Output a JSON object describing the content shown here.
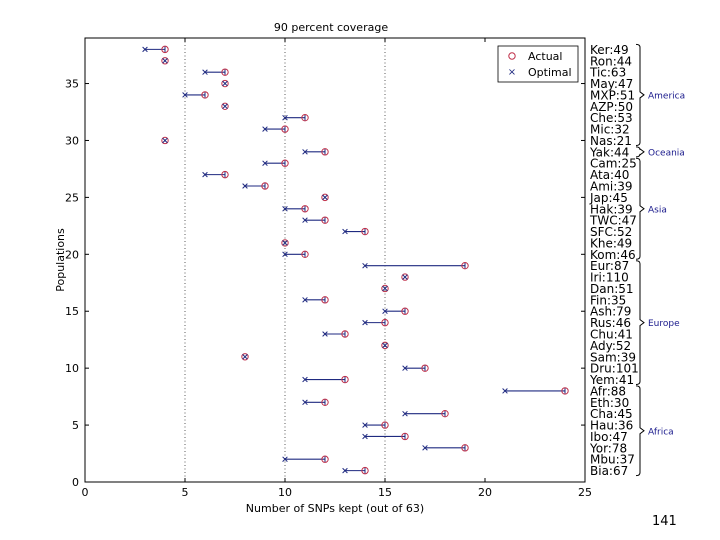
{
  "page_number": "141",
  "colors": {
    "actual": "#c0304a",
    "optimal": "#1f2a80",
    "grid": "#333333"
  },
  "legend": {
    "actual": "Actual",
    "optimal": "Optimal"
  },
  "chart_data": {
    "type": "scatter",
    "title": "90 percent coverage",
    "xlabel": "Number of SNPs kept (out of 63)",
    "ylabel": "Populations",
    "xlim": [
      0,
      25
    ],
    "ylim": [
      0,
      39
    ],
    "xticks": [
      0,
      5,
      10,
      15,
      20,
      25
    ],
    "yticks": [
      0,
      5,
      10,
      15,
      20,
      25,
      30,
      35
    ],
    "grid": "x-dotted at 5, 10, 15",
    "legend_position": "top-right",
    "populations": [
      {
        "y": 38,
        "label": "Ker:49",
        "actual": 4,
        "optimal": 3
      },
      {
        "y": 37,
        "label": "Ron:44",
        "actual": 4,
        "optimal": 4
      },
      {
        "y": 36,
        "label": "Tic:63",
        "actual": 7,
        "optimal": 6
      },
      {
        "y": 35,
        "label": "May:47",
        "actual": 7,
        "optimal": 7
      },
      {
        "y": 34,
        "label": "MXP:51",
        "actual": 6,
        "optimal": 5
      },
      {
        "y": 33,
        "label": "AZP:50",
        "actual": 7,
        "optimal": 7
      },
      {
        "y": 32,
        "label": "Che:53",
        "actual": 11,
        "optimal": 10
      },
      {
        "y": 31,
        "label": "Mic:32",
        "actual": 10,
        "optimal": 9
      },
      {
        "y": 30,
        "label": "Nas:21",
        "actual": 4,
        "optimal": 4
      },
      {
        "y": 29,
        "label": "Yak:44",
        "actual": 12,
        "optimal": 11
      },
      {
        "y": 28,
        "label": "Cam:25",
        "actual": 10,
        "optimal": 9
      },
      {
        "y": 27,
        "label": "Ata:40",
        "actual": 7,
        "optimal": 6
      },
      {
        "y": 26,
        "label": "Ami:39",
        "actual": 9,
        "optimal": 8
      },
      {
        "y": 25,
        "label": "Jap:45",
        "actual": 12,
        "optimal": 12
      },
      {
        "y": 24,
        "label": "Hak:39",
        "actual": 11,
        "optimal": 10
      },
      {
        "y": 23,
        "label": "TWC:47",
        "actual": 12,
        "optimal": 11
      },
      {
        "y": 22,
        "label": "SFC:52",
        "actual": 14,
        "optimal": 13
      },
      {
        "y": 21,
        "label": "Khe:49",
        "actual": 10,
        "optimal": 10
      },
      {
        "y": 20,
        "label": "Kom:46",
        "actual": 11,
        "optimal": 10
      },
      {
        "y": 19,
        "label": "Eur:87",
        "actual": 19,
        "optimal": 14
      },
      {
        "y": 18,
        "label": "Iri:110",
        "actual": 16,
        "optimal": 16
      },
      {
        "y": 17,
        "label": "Dan:51",
        "actual": 15,
        "optimal": 15
      },
      {
        "y": 16,
        "label": "Fin:35",
        "actual": 12,
        "optimal": 11
      },
      {
        "y": 15,
        "label": "Ash:79",
        "actual": 16,
        "optimal": 15
      },
      {
        "y": 14,
        "label": "Rus:46",
        "actual": 15,
        "optimal": 14
      },
      {
        "y": 13,
        "label": "Chu:41",
        "actual": 13,
        "optimal": 12
      },
      {
        "y": 12,
        "label": "Ady:52",
        "actual": 15,
        "optimal": 15
      },
      {
        "y": 11,
        "label": "Sam:39",
        "actual": 8,
        "optimal": 8
      },
      {
        "y": 10,
        "label": "Dru:101",
        "actual": 17,
        "optimal": 16
      },
      {
        "y": 9,
        "label": "Yem:41",
        "actual": 13,
        "optimal": 11
      },
      {
        "y": 8,
        "label": "Afr:88",
        "actual": 24,
        "optimal": 21
      },
      {
        "y": 7,
        "label": "Eth:30",
        "actual": 12,
        "optimal": 11
      },
      {
        "y": 6,
        "label": "Cha:45",
        "actual": 18,
        "optimal": 16
      },
      {
        "y": 5,
        "label": "Hau:36",
        "actual": 15,
        "optimal": 14
      },
      {
        "y": 4,
        "label": "Ibo:47",
        "actual": 16,
        "optimal": 14
      },
      {
        "y": 3,
        "label": "Yor:78",
        "actual": 19,
        "optimal": 17
      },
      {
        "y": 2,
        "label": "Mbu:37",
        "actual": 12,
        "optimal": 10
      },
      {
        "y": 1,
        "label": "Bia:67",
        "actual": 14,
        "optimal": 13
      }
    ],
    "regions": [
      {
        "name": "America",
        "from": 30,
        "to": 38
      },
      {
        "name": "Oceania",
        "from": 29,
        "to": 29
      },
      {
        "name": "Asia",
        "from": 20,
        "to": 28
      },
      {
        "name": "Europe",
        "from": 9,
        "to": 19
      },
      {
        "name": "Africa",
        "from": 1,
        "to": 8
      }
    ]
  }
}
